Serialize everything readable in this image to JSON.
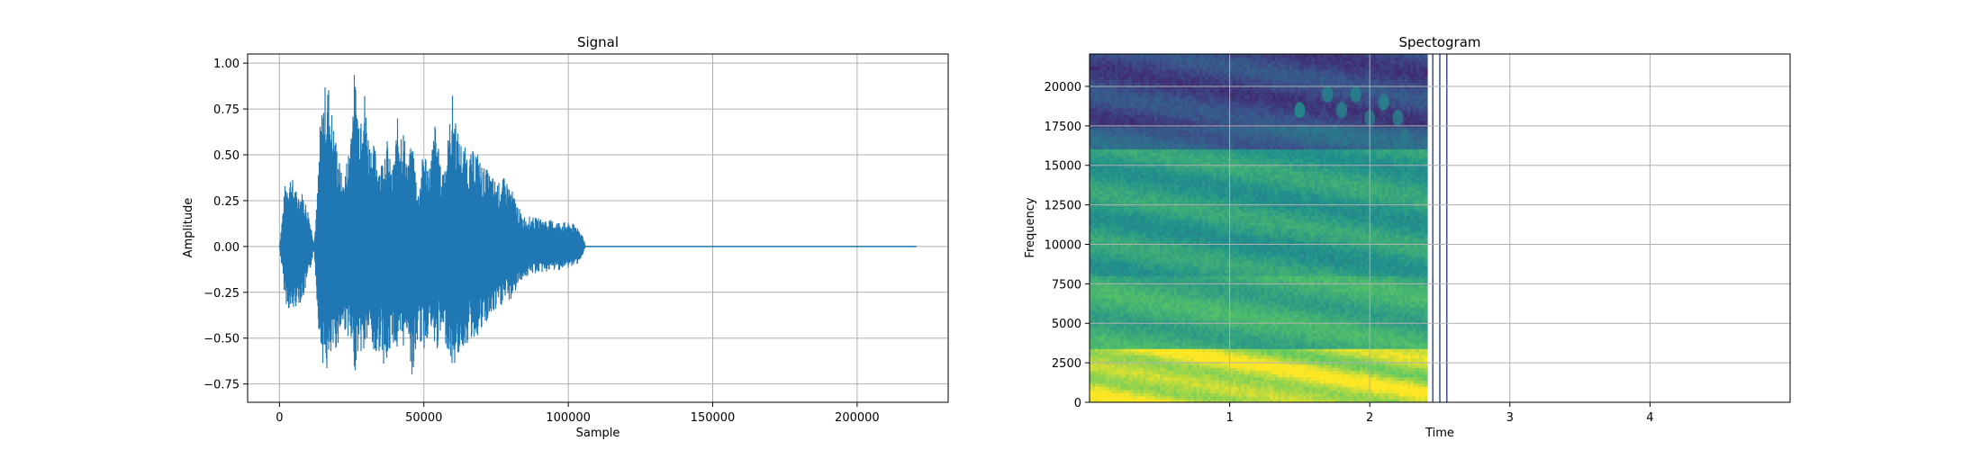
{
  "chart_data": [
    {
      "type": "line",
      "title": "Signal",
      "xlabel": "Sample",
      "ylabel": "Amplitude",
      "xlim": [
        -11025,
        231525
      ],
      "ylim": [
        -0.85,
        1.05
      ],
      "grid": true,
      "color": "#1f77b4",
      "x_ticks": [
        0,
        50000,
        100000,
        150000,
        200000
      ],
      "x_tick_labels": [
        "0",
        "50000",
        "100000",
        "150000",
        "200000"
      ],
      "y_ticks": [
        -0.75,
        -0.5,
        -0.25,
        0.0,
        0.25,
        0.5,
        0.75,
        1.0
      ],
      "y_tick_labels": [
        "−0.75",
        "−0.50",
        "−0.25",
        "0.00",
        "0.25",
        "0.50",
        "0.75",
        "1.00"
      ],
      "x_range": [
        0,
        220500
      ],
      "envelope": {
        "x": [
          0,
          2000,
          4000,
          6000,
          8000,
          10000,
          12000,
          13000,
          14000,
          15500,
          17000,
          18500,
          20000,
          22000,
          24000,
          26000,
          27500,
          29000,
          31000,
          33000,
          35000,
          37000,
          39000,
          41000,
          43000,
          44500,
          46000,
          48000,
          50000,
          52000,
          54000,
          56000,
          58000,
          60000,
          62000,
          64000,
          66000,
          68000,
          70000,
          72000,
          74000,
          76000,
          78000,
          80000,
          84000,
          88000,
          92000,
          96000,
          100000,
          103000,
          105000,
          106000,
          220500
        ],
        "upper": [
          0.0,
          0.35,
          0.4,
          0.3,
          0.3,
          0.2,
          0.02,
          0.25,
          0.65,
          0.88,
          0.9,
          0.7,
          0.55,
          0.35,
          0.55,
          0.97,
          0.75,
          0.95,
          0.6,
          0.55,
          0.45,
          0.62,
          0.4,
          0.72,
          0.65,
          0.45,
          0.6,
          0.3,
          0.55,
          0.45,
          0.7,
          0.4,
          0.55,
          0.85,
          0.6,
          0.55,
          0.5,
          0.55,
          0.45,
          0.42,
          0.38,
          0.35,
          0.38,
          0.33,
          0.17,
          0.16,
          0.15,
          0.14,
          0.13,
          0.12,
          0.06,
          0.0,
          0.0
        ],
        "lower": [
          0.0,
          -0.3,
          -0.38,
          -0.32,
          -0.3,
          -0.18,
          -0.02,
          -0.3,
          -0.55,
          -0.68,
          -0.7,
          -0.6,
          -0.55,
          -0.45,
          -0.5,
          -0.7,
          -0.55,
          -0.62,
          -0.48,
          -0.65,
          -0.55,
          -0.72,
          -0.5,
          -0.62,
          -0.55,
          -0.45,
          -0.75,
          -0.5,
          -0.58,
          -0.45,
          -0.6,
          -0.5,
          -0.55,
          -0.68,
          -0.6,
          -0.55,
          -0.52,
          -0.5,
          -0.48,
          -0.42,
          -0.38,
          -0.35,
          -0.3,
          -0.3,
          -0.18,
          -0.15,
          -0.14,
          -0.13,
          -0.12,
          -0.1,
          -0.05,
          0.0,
          0.0
        ]
      }
    },
    {
      "type": "heatmap",
      "title": "Spectogram",
      "xlabel": "Time",
      "ylabel": "Frequency",
      "xlim": [
        0.0,
        5.0
      ],
      "ylim": [
        0,
        22050
      ],
      "grid": true,
      "colormap": "viridis",
      "x_ticks": [
        1,
        2,
        3,
        4
      ],
      "x_tick_labels": [
        "1",
        "2",
        "3",
        "4"
      ],
      "y_ticks": [
        0,
        2500,
        5000,
        7500,
        10000,
        12500,
        15000,
        17500,
        20000
      ],
      "y_tick_labels": [
        "0",
        "2500",
        "5000",
        "7500",
        "10000",
        "12500",
        "15000",
        "17500",
        "20000"
      ],
      "data_time_range": [
        0.0,
        2.41
      ],
      "frequency_bands": [
        {
          "from": 0,
          "to": 3500,
          "intensity": 0.9
        },
        {
          "from": 3500,
          "to": 8000,
          "intensity": 0.62
        },
        {
          "from": 8000,
          "to": 16000,
          "intensity": 0.55
        },
        {
          "from": 16000,
          "to": 17500,
          "intensity": 0.32
        },
        {
          "from": 17500,
          "to": 22050,
          "intensity": 0.22
        }
      ],
      "high_freq_blobs": [
        {
          "t": 1.7,
          "f": 19500,
          "intensity": 0.45
        },
        {
          "t": 1.8,
          "f": 18500,
          "intensity": 0.45
        },
        {
          "t": 1.9,
          "f": 19500,
          "intensity": 0.45
        },
        {
          "t": 2.0,
          "f": 18000,
          "intensity": 0.4
        },
        {
          "t": 2.1,
          "f": 19000,
          "intensity": 0.45
        },
        {
          "t": 2.2,
          "f": 18000,
          "intensity": 0.42
        },
        {
          "t": 1.5,
          "f": 18500,
          "intensity": 0.5
        },
        {
          "t": 1.75,
          "f": 17000,
          "intensity": 0.4
        },
        {
          "t": 2.25,
          "f": 16800,
          "intensity": 0.4
        }
      ],
      "stray_lines_t": [
        2.45,
        2.5,
        2.55
      ]
    }
  ]
}
